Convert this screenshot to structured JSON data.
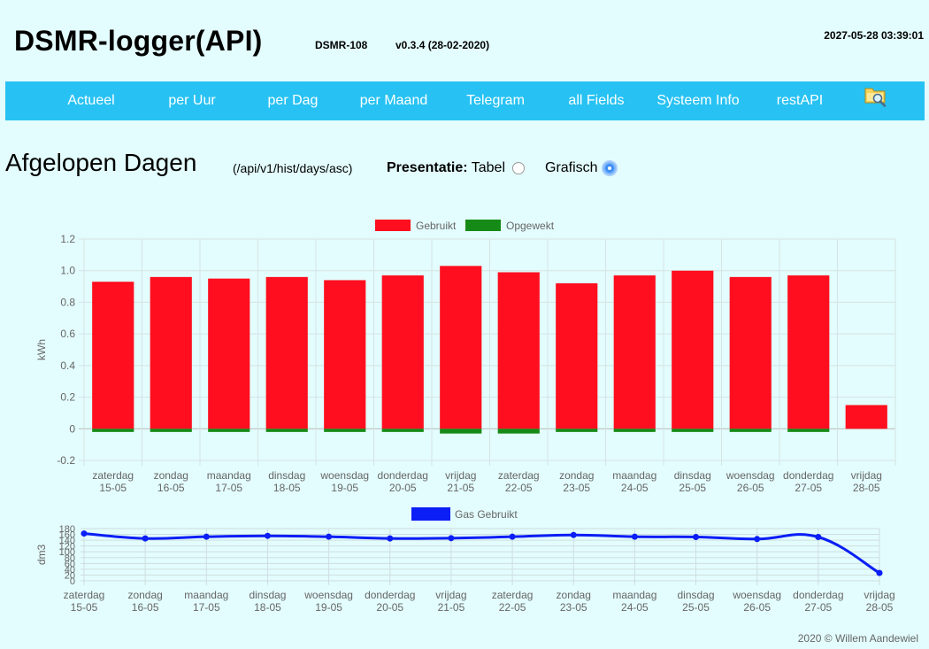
{
  "header": {
    "title": "DSMR-logger(API)",
    "device": "DSMR-108",
    "version": "v0.3.4 (28-02-2020)",
    "datetime": "2027-05-28 03:39:01"
  },
  "nav": {
    "items": [
      "Actueel",
      "per Uur",
      "per Dag",
      "per Maand",
      "Telegram",
      "all Fields",
      "Systeem Info",
      "restAPI"
    ],
    "icon": "file-explorer-icon"
  },
  "page": {
    "title": "Afgelopen Dagen",
    "api_path": "(/api/v1/hist/days/asc)",
    "presentatie_label": "Presentatie:",
    "option_tabel": "Tabel",
    "option_grafisch": "Grafisch",
    "selected": "Grafisch"
  },
  "chart_data": [
    {
      "type": "bar",
      "categories": [
        [
          "zaterdag",
          "15-05"
        ],
        [
          "zondag",
          "16-05"
        ],
        [
          "maandag",
          "17-05"
        ],
        [
          "dinsdag",
          "18-05"
        ],
        [
          "woensdag",
          "19-05"
        ],
        [
          "donderdag",
          "20-05"
        ],
        [
          "vrijdag",
          "21-05"
        ],
        [
          "zaterdag",
          "22-05"
        ],
        [
          "zondag",
          "23-05"
        ],
        [
          "maandag",
          "24-05"
        ],
        [
          "dinsdag",
          "25-05"
        ],
        [
          "woensdag",
          "26-05"
        ],
        [
          "donderdag",
          "27-05"
        ],
        [
          "vrijdag",
          "28-05"
        ]
      ],
      "series": [
        {
          "name": "Gebruikt",
          "color": "#fe0e1e",
          "values": [
            0.93,
            0.96,
            0.95,
            0.96,
            0.94,
            0.97,
            1.03,
            0.99,
            0.92,
            0.97,
            1.0,
            0.96,
            0.97,
            0.15
          ]
        },
        {
          "name": "Opgewekt",
          "color": "#168a16",
          "values": [
            -0.02,
            -0.02,
            -0.02,
            -0.02,
            -0.02,
            -0.02,
            -0.03,
            -0.03,
            -0.02,
            -0.02,
            -0.02,
            -0.02,
            -0.02,
            0
          ]
        }
      ],
      "ylabel": "kWh",
      "ylim": [
        -0.2,
        1.2
      ],
      "yticks": [
        "1.2",
        "1.0",
        "0.8",
        "0.6",
        "0.4",
        "0.2",
        "0",
        "-0.2"
      ],
      "grid": true,
      "legend": "top"
    },
    {
      "type": "line",
      "categories": [
        [
          "zaterdag",
          "15-05"
        ],
        [
          "zondag",
          "16-05"
        ],
        [
          "maandag",
          "17-05"
        ],
        [
          "dinsdag",
          "18-05"
        ],
        [
          "woensdag",
          "19-05"
        ],
        [
          "donderdag",
          "20-05"
        ],
        [
          "vrijdag",
          "21-05"
        ],
        [
          "zaterdag",
          "22-05"
        ],
        [
          "zondag",
          "23-05"
        ],
        [
          "maandag",
          "24-05"
        ],
        [
          "dinsdag",
          "25-05"
        ],
        [
          "woensdag",
          "26-05"
        ],
        [
          "donderdag",
          "27-05"
        ],
        [
          "vrijdag",
          "28-05"
        ]
      ],
      "series": [
        {
          "name": "Gas Gebruikt",
          "color": "#0a1ef5",
          "values": [
            163,
            146,
            152,
            155,
            152,
            146,
            147,
            152,
            158,
            152,
            151,
            144,
            151,
            27
          ]
        }
      ],
      "ylabel": "dm3",
      "ylim": [
        0,
        180
      ],
      "yticks": [
        "180",
        "160",
        "140",
        "120",
        "100",
        "80",
        "60",
        "40",
        "20",
        "0"
      ],
      "grid": true,
      "legend": "top"
    }
  ],
  "footer": "2020 © Willem Aandewiel"
}
